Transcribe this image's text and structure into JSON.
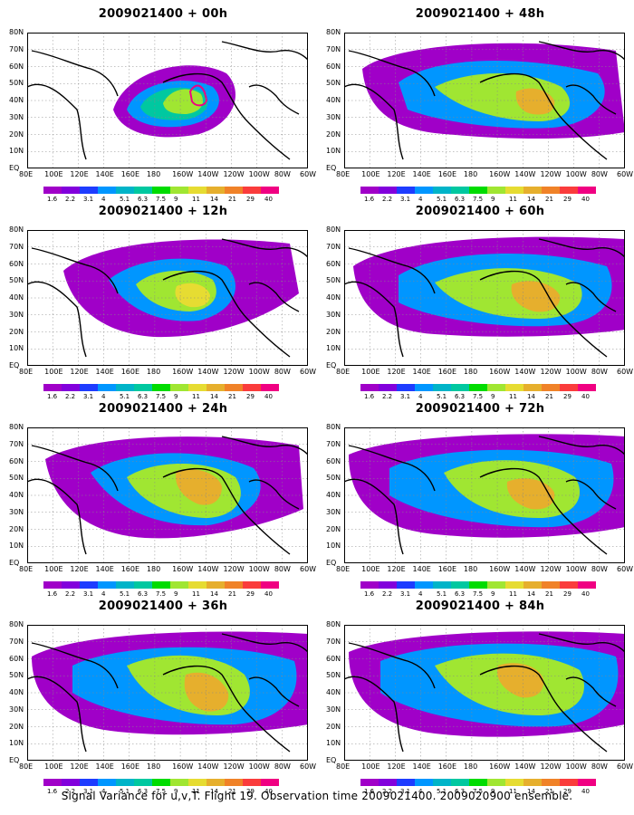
{
  "panels": [
    {
      "title": "2009021400 + 00h"
    },
    {
      "title": "2009021400 + 48h"
    },
    {
      "title": "2009021400 + 12h"
    },
    {
      "title": "2009021400 + 60h"
    },
    {
      "title": "2009021400 + 24h"
    },
    {
      "title": "2009021400 + 72h"
    },
    {
      "title": "2009021400 + 36h"
    },
    {
      "title": "2009021400 + 84h"
    }
  ],
  "lon_labels": [
    "80E",
    "100E",
    "120E",
    "140E",
    "160E",
    "180",
    "160W",
    "140W",
    "120W",
    "100W",
    "80W",
    "60W"
  ],
  "lat_labels": [
    "80N",
    "70N",
    "60N",
    "50N",
    "40N",
    "30N",
    "20N",
    "10N",
    "EQ"
  ],
  "colorbar": {
    "labels": [
      "1.6",
      "2.2",
      "3.1",
      "4",
      "5.1",
      "6.3",
      "7.5",
      "9",
      "11",
      "14",
      "21",
      "29",
      "40"
    ],
    "colors": [
      "#a000c8",
      "#8200dc",
      "#1e3cff",
      "#0096ff",
      "#00b4c8",
      "#00c8a0",
      "#00dc00",
      "#a0e632",
      "#e6dc32",
      "#e6af2d",
      "#f08228",
      "#fa3c3c",
      "#f00082"
    ]
  },
  "footer": "Signal Variance for u,v,T. Flight 19. Observation time 2009021400. 2009020900 ensemble."
}
